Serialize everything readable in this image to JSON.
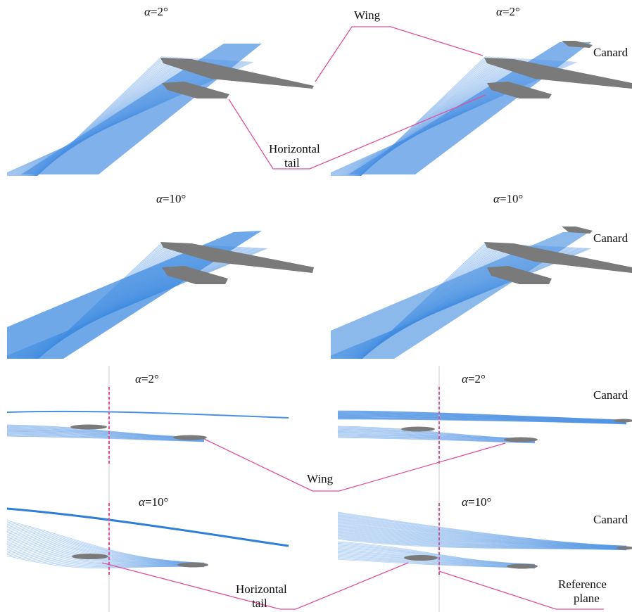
{
  "labels": {
    "wing": "Wing",
    "horizontal_tail_line1": "Horizontal",
    "horizontal_tail_line2": "tail",
    "canard": "Canard",
    "reference_plane_line1": "Reference",
    "reference_plane_line2": "plane",
    "alpha_symbol": "α",
    "angle_2": "=2°",
    "angle_10": "=10°"
  },
  "colors": {
    "streamline": "#4a90e2",
    "streamline_dense": "#3d8be0",
    "surface": "#7a7a7a",
    "leader_line": "#e0509a",
    "reference_line": "#e0509a"
  }
}
